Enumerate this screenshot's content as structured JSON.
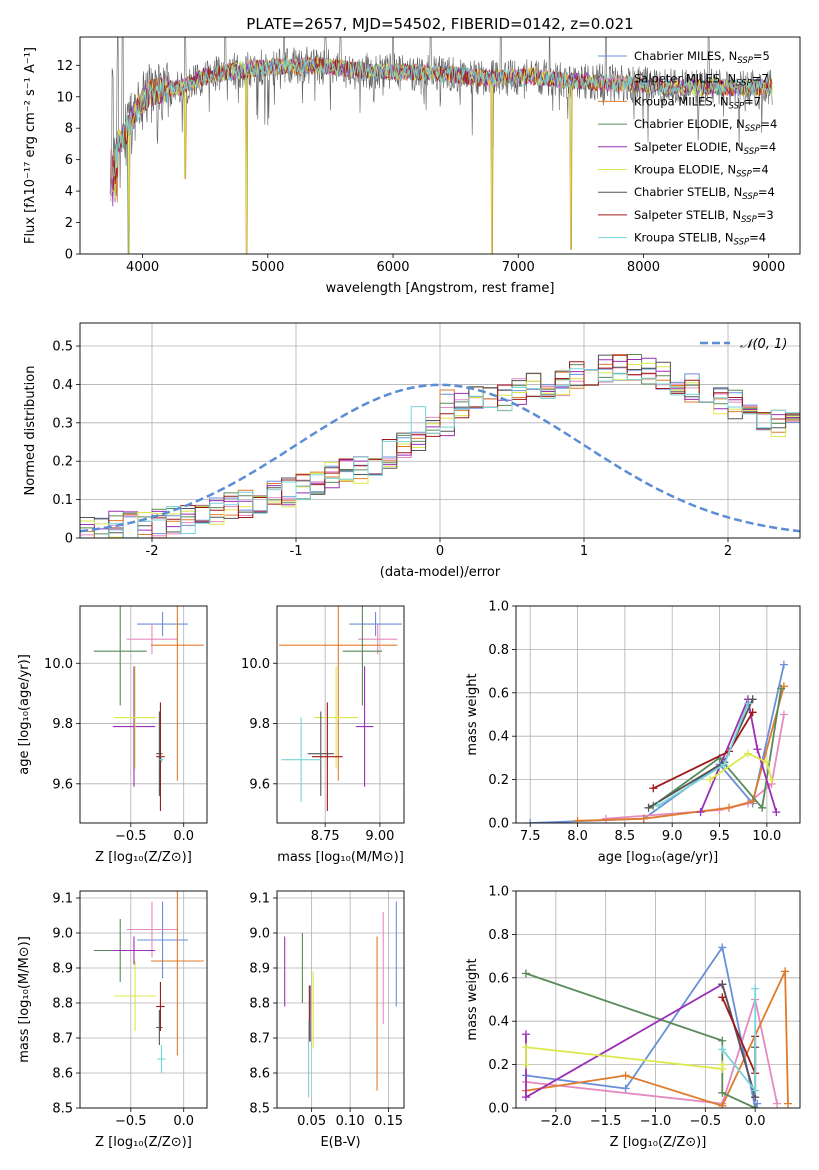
{
  "figure": {
    "title": "PLATE=2657, MJD=54502, FIBERID=0142, z=0.021"
  },
  "series_styles": [
    {
      "key": "chabrier_miles",
      "color": "#6a8fd8"
    },
    {
      "key": "salpeter_miles",
      "color": "#e58ac0"
    },
    {
      "key": "kroupa_miles",
      "color": "#e07b2a"
    },
    {
      "key": "chabrier_elodie",
      "color": "#5a8a5a"
    },
    {
      "key": "salpeter_elodie",
      "color": "#9b2fb5"
    },
    {
      "key": "kroupa_elodie",
      "color": "#dbe84a"
    },
    {
      "key": "chabrier_stelib",
      "color": "#555555"
    },
    {
      "key": "salpeter_stelib",
      "color": "#a01818"
    },
    {
      "key": "kroupa_stelib",
      "color": "#77d4d8"
    }
  ],
  "chart_data": [
    {
      "id": "spectrum",
      "type": "line",
      "xlabel": "wavelength [Angstrom, rest frame]",
      "ylabel": "Flux [fλ10⁻¹⁷ erg cm⁻² s⁻¹ A⁻¹]",
      "xlim": [
        3500,
        9250
      ],
      "ylim": [
        0,
        13.8
      ],
      "xticks": [
        4000,
        5000,
        6000,
        7000,
        8000,
        9000
      ],
      "yticks": [
        0,
        2,
        4,
        6,
        8,
        10,
        12
      ],
      "grid": false,
      "legend_position": "upper-right",
      "legend": [
        "Chabrier MILES, N_SSP=5",
        "Salpeter MILES, N_SSP=7",
        "Kroupa MILES, N_SSP=7",
        "Chabrier ELODIE, N_SSP=4",
        "Salpeter ELODIE, N_SSP=4",
        "Kroupa ELODIE, N_SSP=4",
        "Chabrier STELIB, N_SSP=4",
        "Salpeter STELIB, N_SSP=3",
        "Kroupa STELIB, N_SSP=4"
      ],
      "continuum_x": [
        3750,
        3850,
        3950,
        4050,
        4150,
        4300,
        4500,
        4700,
        4900,
        5100,
        5300,
        5500,
        5700,
        5900,
        6100,
        6300,
        6500,
        6700,
        6900,
        7100,
        7300,
        7500,
        7700,
        7900,
        8100,
        8300,
        8500,
        8700,
        8900,
        9000
      ],
      "continuum_y": [
        6.5,
        7.5,
        9.2,
        10.2,
        10.4,
        10.6,
        11.3,
        11.6,
        11.8,
        11.9,
        12.0,
        11.9,
        11.7,
        11.6,
        11.6,
        11.5,
        11.4,
        11.2,
        11.2,
        11.3,
        11.1,
        11.0,
        10.9,
        10.8,
        10.7,
        10.6,
        10.6,
        10.6,
        10.6,
        10.6
      ],
      "dips": [
        {
          "x": 3890,
          "y": 0.0
        },
        {
          "x": 4340,
          "y": 4.8
        },
        {
          "x": 4830,
          "y": 0.0
        },
        {
          "x": 6790,
          "y": 0.0
        },
        {
          "x": 7420,
          "y": 0.3
        }
      ],
      "upper_spikes": [
        3760,
        3800,
        3840,
        4340,
        4660,
        5130,
        5460,
        5580,
        6000,
        6300,
        6860,
        7250,
        7700,
        8520
      ]
    },
    {
      "id": "residuals",
      "type": "histogram",
      "xlabel": "(data-model)/error",
      "ylabel": "Normed distribution",
      "xlim": [
        -2.5,
        2.5
      ],
      "ylim": [
        0,
        0.56
      ],
      "xticks": [
        -2,
        -1,
        0,
        1,
        2
      ],
      "yticks": [
        0.0,
        0.1,
        0.2,
        0.3,
        0.4,
        0.5
      ],
      "grid": true,
      "legend_position": "upper-right",
      "reference_curve": {
        "label": "𝒩(0, 1)",
        "mean": 0,
        "sigma": 1,
        "color": "#5b8dd6"
      },
      "bin_width": 0.1,
      "bin_start": -2.5,
      "base_heights": [
        0.02,
        0.02,
        0.03,
        0.03,
        0.03,
        0.04,
        0.05,
        0.05,
        0.06,
        0.07,
        0.08,
        0.09,
        0.1,
        0.11,
        0.12,
        0.13,
        0.15,
        0.16,
        0.17,
        0.18,
        0.2,
        0.22,
        0.24,
        0.26,
        0.28,
        0.3,
        0.32,
        0.33,
        0.35,
        0.36,
        0.38,
        0.39,
        0.4,
        0.41,
        0.42,
        0.43,
        0.44,
        0.45,
        0.44,
        0.43,
        0.42,
        0.41,
        0.39,
        0.38,
        0.36,
        0.35,
        0.34,
        0.32,
        0.3,
        0.29,
        0.27,
        0.25,
        0.23,
        0.21,
        0.2,
        0.18,
        0.16,
        0.15,
        0.13,
        0.12,
        0.1,
        0.09,
        0.08,
        0.07,
        0.06,
        0.05,
        0.05,
        0.04,
        0.04,
        0.03,
        0.03,
        0.03,
        0.02,
        0.02,
        0.02,
        0.02,
        0.02,
        0.01,
        0.01,
        0.01
      ],
      "spread": 0.04
    },
    {
      "id": "age_vs_Z",
      "type": "scatter",
      "xlabel": "Z [log₁₀(Z/Z⊙)]",
      "ylabel": "age  [log₁₀(age/yr)]",
      "xlim": [
        -0.98,
        0.22
      ],
      "ylim": [
        9.47,
        10.19
      ],
      "xticks": [
        -0.5,
        0.0
      ],
      "xticklabels": [
        "−0.5",
        "0.0"
      ],
      "yticks": [
        9.6,
        9.8,
        10.0
      ],
      "yticklabels": [
        "9.6",
        "9.8",
        "10.0"
      ],
      "grid": true,
      "points": [
        {
          "series": 0,
          "x": -0.2,
          "y": 10.13,
          "xerr": 0.24,
          "yerr": 0.04
        },
        {
          "series": 1,
          "x": -0.3,
          "y": 10.08,
          "xerr": 0.24,
          "yerr": 0.05
        },
        {
          "series": 2,
          "x": -0.06,
          "y": 10.06,
          "xerr": 0.25,
          "yerr": 0.45
        },
        {
          "series": 3,
          "x": -0.6,
          "y": 10.04,
          "xerr": 0.25,
          "yerr": 0.18
        },
        {
          "series": 4,
          "x": -0.47,
          "y": 9.79,
          "xerr": 0.2,
          "yerr": 0.2
        },
        {
          "series": 5,
          "x": -0.46,
          "y": 9.82,
          "xerr": 0.2,
          "yerr": 0.17
        },
        {
          "series": 6,
          "x": -0.23,
          "y": 9.7,
          "xerr": 0.03,
          "yerr": 0.14
        },
        {
          "series": 7,
          "x": -0.22,
          "y": 9.69,
          "xerr": 0.04,
          "yerr": 0.18
        },
        {
          "series": 8,
          "x": -0.21,
          "y": 9.68,
          "xerr": 0.02,
          "yerr": 0.01
        }
      ]
    },
    {
      "id": "age_vs_mass",
      "type": "scatter",
      "xlabel": "mass [log₁₀(M/M⊙)]",
      "ylabel": "",
      "xlim": [
        8.53,
        9.11
      ],
      "ylim": [
        9.47,
        10.19
      ],
      "xticks": [
        8.5,
        8.75,
        9.0
      ],
      "xticklabels": [
        "8.50",
        "8.75",
        "9.00"
      ],
      "yticks": [
        9.6,
        9.8,
        10.0
      ],
      "yticklabels": [
        "9.6",
        "9.8",
        "10.0"
      ],
      "grid": true,
      "points": [
        {
          "series": 0,
          "x": 8.98,
          "y": 10.13,
          "xerr": 0.12,
          "yerr": 0.04
        },
        {
          "series": 1,
          "x": 8.99,
          "y": 10.08,
          "xerr": 0.09,
          "yerr": 0.05
        },
        {
          "series": 2,
          "x": 8.81,
          "y": 10.06,
          "xerr": 0.27,
          "yerr": 0.45
        },
        {
          "series": 3,
          "x": 8.92,
          "y": 10.04,
          "xerr": 0.09,
          "yerr": 0.18
        },
        {
          "series": 4,
          "x": 8.93,
          "y": 9.79,
          "xerr": 0.04,
          "yerr": 0.2
        },
        {
          "series": 5,
          "x": 8.8,
          "y": 9.82,
          "xerr": 0.1,
          "yerr": 0.17
        },
        {
          "series": 6,
          "x": 8.73,
          "y": 9.7,
          "xerr": 0.06,
          "yerr": 0.14
        },
        {
          "series": 7,
          "x": 8.76,
          "y": 9.69,
          "xerr": 0.07,
          "yerr": 0.18
        },
        {
          "series": 8,
          "x": 8.64,
          "y": 9.68,
          "xerr": 0.09,
          "yerr": 0.14
        }
      ]
    },
    {
      "id": "weight_vs_age",
      "type": "line",
      "xlabel": "age  [log₁₀(age/yr)]",
      "ylabel": "mass weight",
      "xlim": [
        7.35,
        10.35
      ],
      "ylim": [
        0,
        1.0
      ],
      "xticks": [
        7.5,
        8.0,
        8.5,
        9.0,
        9.5,
        10.0
      ],
      "xticklabels": [
        "7.5",
        "8.0",
        "8.5",
        "9.0",
        "9.5",
        "10.0"
      ],
      "yticks": [
        0.0,
        0.2,
        0.4,
        0.6,
        0.8,
        1.0
      ],
      "yticklabels": [
        "0.0",
        "0.2",
        "0.4",
        "0.6",
        "0.8",
        "1.0"
      ],
      "grid": true,
      "series": [
        {
          "series": 0,
          "x": [
            7.5,
            8.7,
            9.5,
            9.85,
            10.18
          ],
          "y": [
            0.0,
            0.02,
            0.27,
            0.09,
            0.73
          ]
        },
        {
          "series": 1,
          "x": [
            8.3,
            9.5,
            9.8,
            10.05,
            10.18
          ],
          "y": [
            0.02,
            0.06,
            0.09,
            0.18,
            0.5
          ]
        },
        {
          "series": 2,
          "x": [
            8.0,
            8.7,
            9.6,
            9.85,
            10.18
          ],
          "y": [
            0.01,
            0.02,
            0.07,
            0.1,
            0.63
          ]
        },
        {
          "series": 3,
          "x": [
            8.8,
            9.5,
            9.95,
            10.15
          ],
          "y": [
            0.08,
            0.3,
            0.07,
            0.62
          ]
        },
        {
          "series": 4,
          "x": [
            9.3,
            9.8,
            9.9,
            10.1
          ],
          "y": [
            0.05,
            0.57,
            0.34,
            0.05
          ]
        },
        {
          "series": 5,
          "x": [
            9.4,
            9.8,
            10.0,
            10.05
          ],
          "y": [
            0.2,
            0.32,
            0.28,
            0.2
          ]
        },
        {
          "series": 6,
          "x": [
            8.75,
            9.55,
            9.85
          ],
          "y": [
            0.07,
            0.28,
            0.57
          ]
        },
        {
          "series": 7,
          "x": [
            8.8,
            9.6,
            9.85
          ],
          "y": [
            0.16,
            0.33,
            0.51
          ]
        },
        {
          "series": 8,
          "x": [
            8.85,
            9.55,
            9.8
          ],
          "y": [
            0.08,
            0.27,
            0.55
          ]
        }
      ]
    },
    {
      "id": "mass_vs_Z",
      "type": "scatter",
      "xlabel": "Z [log₁₀(Z/Z⊙)]",
      "ylabel": "mass [log₁₀(M/M⊙)]",
      "xlim": [
        -0.98,
        0.22
      ],
      "ylim": [
        8.5,
        9.12
      ],
      "xticks": [
        -0.5,
        0.0
      ],
      "xticklabels": [
        "−0.5",
        "0.0"
      ],
      "yticks": [
        8.5,
        8.6,
        8.7,
        8.8,
        8.9,
        9.0,
        9.1
      ],
      "yticklabels": [
        "8.5",
        "8.6",
        "8.7",
        "8.8",
        "8.9",
        "9.0",
        "9.1"
      ],
      "grid": true,
      "points": [
        {
          "series": 0,
          "x": -0.2,
          "y": 8.98,
          "xerr": 0.24,
          "yerr": 0.11
        },
        {
          "series": 1,
          "x": -0.3,
          "y": 9.01,
          "xerr": 0.24,
          "yerr": 0.08
        },
        {
          "series": 2,
          "x": -0.06,
          "y": 8.92,
          "xerr": 0.25,
          "yerr": 0.27
        },
        {
          "series": 3,
          "x": -0.6,
          "y": 8.95,
          "xerr": 0.25,
          "yerr": 0.09
        },
        {
          "series": 4,
          "x": -0.47,
          "y": 8.95,
          "xerr": 0.2,
          "yerr": 0.04
        },
        {
          "series": 5,
          "x": -0.46,
          "y": 8.82,
          "xerr": 0.2,
          "yerr": 0.1
        },
        {
          "series": 6,
          "x": -0.23,
          "y": 8.73,
          "xerr": 0.03,
          "yerr": 0.05
        },
        {
          "series": 7,
          "x": -0.22,
          "y": 8.79,
          "xerr": 0.04,
          "yerr": 0.07
        },
        {
          "series": 8,
          "x": -0.21,
          "y": 8.64,
          "xerr": 0.04,
          "yerr": 0.04
        }
      ]
    },
    {
      "id": "mass_vs_ebv",
      "type": "scatter",
      "xlabel": "E(B-V)",
      "ylabel": "",
      "xlim": [
        0.005,
        0.17
      ],
      "ylim": [
        8.5,
        9.12
      ],
      "xticks": [
        0.05,
        0.1,
        0.15
      ],
      "xticklabels": [
        "0.05",
        "0.10",
        "0.15"
      ],
      "yticks": [
        8.5,
        8.6,
        8.7,
        8.8,
        8.9,
        9.0,
        9.1
      ],
      "yticklabels": [
        "8.5",
        "8.6",
        "8.7",
        "8.8",
        "8.9",
        "9.0",
        "9.1"
      ],
      "grid": true,
      "points": [
        {
          "series": 0,
          "x": 0.16,
          "y": 8.94,
          "xerr": 0.0,
          "yerr": 0.15
        },
        {
          "series": 1,
          "x": 0.143,
          "y": 8.9,
          "xerr": 0.0,
          "yerr": 0.16
        },
        {
          "series": 2,
          "x": 0.135,
          "y": 8.77,
          "xerr": 0.0,
          "yerr": 0.22
        },
        {
          "series": 3,
          "x": 0.038,
          "y": 8.9,
          "xerr": 0.0,
          "yerr": 0.1
        },
        {
          "series": 4,
          "x": 0.015,
          "y": 8.89,
          "xerr": 0.0,
          "yerr": 0.1
        },
        {
          "series": 5,
          "x": 0.052,
          "y": 8.78,
          "xerr": 0.0,
          "yerr": 0.11
        },
        {
          "series": 6,
          "x": 0.047,
          "y": 8.77,
          "xerr": 0.0,
          "yerr": 0.08
        },
        {
          "series": 7,
          "x": 0.048,
          "y": 8.77,
          "xerr": 0.0,
          "yerr": 0.08
        },
        {
          "series": 8,
          "x": 0.046,
          "y": 8.64,
          "xerr": 0.0,
          "yerr": 0.11
        }
      ]
    },
    {
      "id": "weight_vs_Z",
      "type": "line",
      "xlabel": "Z [log₁₀(Z/Z⊙)]",
      "ylabel": "mass weight",
      "xlim": [
        -2.4,
        0.45
      ],
      "ylim": [
        0,
        1.0
      ],
      "xticks": [
        -2.0,
        -1.5,
        -1.0,
        -0.5,
        0.0
      ],
      "xticklabels": [
        "−2.0",
        "−1.5",
        "−1.0",
        "−0.5",
        "0.0"
      ],
      "yticks": [
        0.0,
        0.2,
        0.4,
        0.6,
        0.8,
        1.0
      ],
      "yticklabels": [
        "0.0",
        "0.2",
        "0.4",
        "0.6",
        "0.8",
        "1.0"
      ],
      "grid": true,
      "series": [
        {
          "series": 0,
          "x": [
            -2.3,
            -1.3,
            -0.33,
            0.0,
            0.02
          ],
          "y": [
            0.15,
            0.09,
            0.74,
            0.0,
            0.02
          ]
        },
        {
          "series": 1,
          "x": [
            -2.3,
            -0.33,
            0.0,
            0.22
          ],
          "y": [
            0.12,
            0.02,
            0.5,
            0.02
          ]
        },
        {
          "series": 2,
          "x": [
            -2.3,
            -1.3,
            -0.33,
            0.3,
            0.33
          ],
          "y": [
            0.08,
            0.15,
            0.01,
            0.63,
            0.02
          ]
        },
        {
          "series": 3,
          "x": [
            -2.3,
            -0.33,
            -0.33,
            0.0
          ],
          "y": [
            0.62,
            0.31,
            0.07,
            0.0
          ]
        },
        {
          "series": 4,
          "x": [
            -2.3,
            -2.3,
            -0.33,
            0.0
          ],
          "y": [
            0.34,
            0.05,
            0.57,
            0.05
          ]
        },
        {
          "series": 5,
          "x": [
            -2.3,
            -2.3,
            -0.33,
            -0.33
          ],
          "y": [
            0.2,
            0.28,
            0.18,
            0.2
          ]
        },
        {
          "series": 6,
          "x": [
            -0.33,
            0.0,
            0.0
          ],
          "y": [
            0.57,
            0.05,
            0.28
          ]
        },
        {
          "series": 7,
          "x": [
            -0.33,
            0.0,
            0.0
          ],
          "y": [
            0.51,
            0.16,
            0.33
          ]
        },
        {
          "series": 8,
          "x": [
            -0.33,
            0.0,
            0.0
          ],
          "y": [
            0.27,
            0.08,
            0.55
          ]
        }
      ]
    }
  ]
}
